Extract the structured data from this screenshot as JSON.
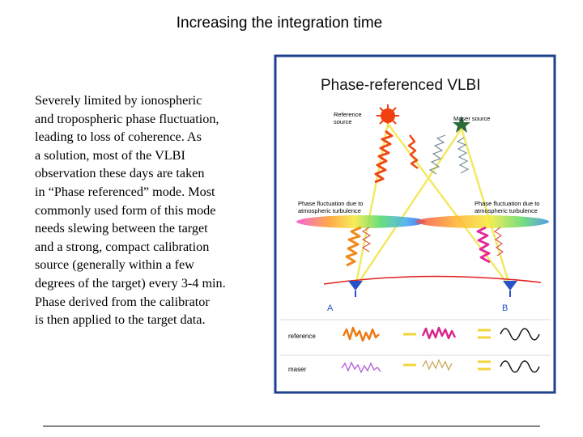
{
  "slide": {
    "title": "Increasing the integration time",
    "body_lines": [
      "Severely limited by ionospheric",
      "and tropospheric phase fluctuation,",
      "leading to  loss of coherence. As",
      "a solution, most of the VLBI",
      "observation  these days are taken",
      "in “Phase referenced” mode. Most",
      "commonly used form of this mode",
      "needs slewing between the target",
      "and a strong, compact calibration",
      "source (generally within a few",
      "degrees of the target) every 3-4 min.",
      "Phase derived from the calibrator",
      "is then applied to the target data."
    ]
  },
  "figure": {
    "title": "Phase-referenced VLBI",
    "reference_source_label": [
      "Reference",
      "source"
    ],
    "maser_source_label": "Maser source",
    "left_fluctuation_label": [
      "Phase fluctuation due to",
      "atmospheric turbulence"
    ],
    "right_fluctuation_label": [
      "Phase fluctuation due to",
      "atmospheric turbulence"
    ],
    "antenna_a": "A",
    "antenna_b": "B",
    "row_reference": "reference",
    "row_maser": "maser",
    "colors": {
      "frame": "#1f3f8f",
      "reference": "#ee5a10",
      "maser": "#8ab6a0",
      "beam": "#f2e85a",
      "label": "#000000",
      "antenna": "#2a52c8",
      "ground": "#e02020"
    }
  }
}
